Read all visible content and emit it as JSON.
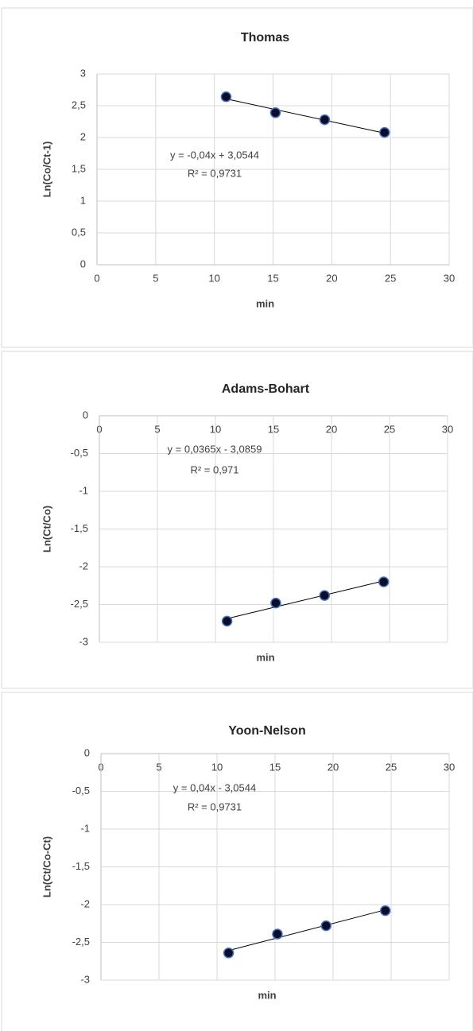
{
  "chart_data": [
    {
      "type": "scatter",
      "title": "Thomas",
      "x_label": "min",
      "y_label": "Ln(Co/Ct-1)",
      "annotations": [
        "y = -0,04x + 3,0544",
        "R² = 0,9731"
      ],
      "x": [
        11,
        15.2,
        19.4,
        24.5
      ],
      "y": [
        2.64,
        2.39,
        2.28,
        2.08
      ],
      "color": "#0d0d26",
      "edge_color": "#4472c4",
      "xlim": [
        0,
        30
      ],
      "xticks": [
        0,
        5,
        10,
        15,
        20,
        25,
        30
      ],
      "ylim": [
        0,
        3
      ],
      "yticks": [
        0,
        {
          "value": 0.5,
          "label": "0,5"
        },
        1,
        {
          "value": 1.5,
          "label": "1,5"
        },
        2,
        {
          "value": 2.5,
          "label": "2,5"
        },
        3
      ],
      "grid": true,
      "trendline": true
    },
    {
      "type": "scatter",
      "title": "Adams-Bohart",
      "x_label": "min",
      "y_label": "Ln(Ct/Co)",
      "annotations": [
        "y = 0,0365x - 3,0859",
        "R² = 0,971"
      ],
      "x": [
        11,
        15.2,
        19.4,
        24.5
      ],
      "y": [
        -2.72,
        -2.48,
        -2.38,
        -2.2
      ],
      "color": "#0d0d26",
      "edge_color": "#4472c4",
      "xlim": [
        0,
        30
      ],
      "xticks": [
        0,
        5,
        10,
        15,
        20,
        25,
        30
      ],
      "ylim": [
        -3,
        0
      ],
      "yticks": [
        0,
        {
          "value": -0.5,
          "label": "-0,5"
        },
        -1,
        {
          "value": -1.5,
          "label": "-1,5"
        },
        -2,
        {
          "value": -2.5,
          "label": "-2,5"
        },
        -3
      ],
      "grid": true,
      "trendline": true
    },
    {
      "type": "scatter",
      "title": "Yoon-Nelson",
      "x_label": "min",
      "y_label": "Ln(Ct/Co-Ct)",
      "annotations": [
        "y = 0,04x - 3,0544",
        "R² = 0,9731"
      ],
      "x": [
        11,
        15.2,
        19.4,
        24.5
      ],
      "y": [
        -2.64,
        -2.39,
        -2.28,
        -2.08
      ],
      "color": "#0d0d26",
      "edge_color": "#4472c4",
      "xlim": [
        0,
        30
      ],
      "xticks": [
        0,
        5,
        10,
        15,
        20,
        25,
        30
      ],
      "ylim": [
        -3,
        0
      ],
      "yticks": [
        0,
        {
          "value": -0.5,
          "label": "-0,5"
        },
        -1,
        {
          "value": -1.5,
          "label": "-1,5"
        },
        -2,
        {
          "value": -2.5,
          "label": "-2,5"
        },
        -3
      ],
      "grid": true,
      "trendline": true
    }
  ]
}
